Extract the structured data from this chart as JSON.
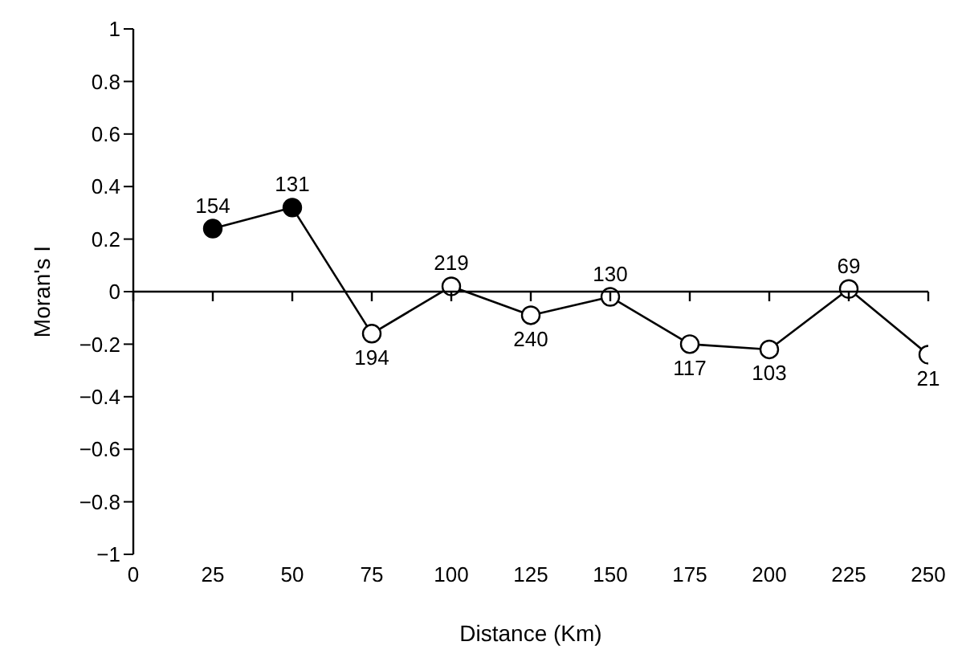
{
  "chart_data": {
    "type": "line",
    "xlabel": "Distance (Km)",
    "ylabel": "Moran's I",
    "x": [
      25,
      50,
      75,
      100,
      125,
      150,
      175,
      200,
      225,
      250
    ],
    "series": [
      {
        "color": "#000000",
        "colors": [
          "#000000",
          "#000000",
          "#ffffff",
          "#ffffff",
          "#ffffff",
          "#ffffff",
          "#ffffff",
          "#ffffff",
          "#ffffff",
          "#ffffff"
        ],
        "values": [
          0.24,
          0.32,
          -0.16,
          0.02,
          -0.09,
          -0.02,
          -0.2,
          -0.22,
          0.01,
          -0.24
        ]
      }
    ],
    "xlim": [
      0,
      250
    ],
    "xticks": [
      0,
      25,
      50,
      75,
      100,
      125,
      150,
      175,
      200,
      225,
      250
    ],
    "ylim": [
      -1,
      1
    ],
    "yticks": [
      -1,
      -0.8,
      -0.6,
      -0.4,
      -0.2,
      0,
      0.2,
      0.4,
      0.6,
      0.8,
      1
    ],
    "annotations": [
      {
        "text": "154",
        "x": 25,
        "y": 0.24
      },
      {
        "text": "131",
        "x": 50,
        "y": 0.32
      },
      {
        "text": "194",
        "x": 75,
        "y": -0.16
      },
      {
        "text": "219",
        "x": 100,
        "y": 0.02
      },
      {
        "text": "240",
        "x": 125,
        "y": -0.09
      },
      {
        "text": "130",
        "x": 150,
        "y": -0.02
      },
      {
        "text": "117",
        "x": 175,
        "y": -0.2
      },
      {
        "text": "103",
        "x": 200,
        "y": -0.22
      },
      {
        "text": "69",
        "x": 225,
        "y": 0.01
      },
      {
        "text": "21",
        "x": 250,
        "y": -0.24
      }
    ],
    "ref_lines": [
      {
        "axis": "y",
        "value": 0,
        "color": "#000000"
      }
    ],
    "marker": "circle",
    "grid": false,
    "legend": false
  }
}
